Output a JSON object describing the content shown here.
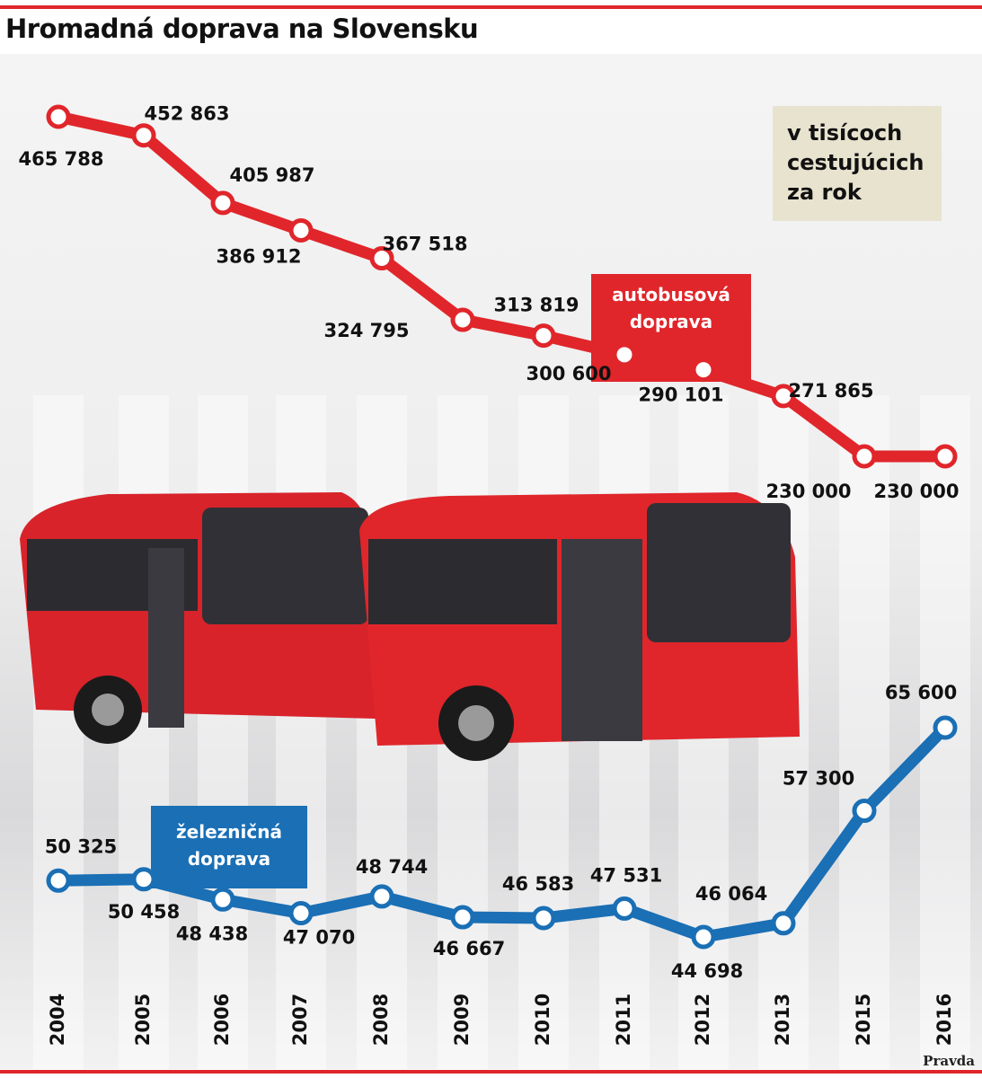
{
  "chart_data": {
    "type": "line",
    "title": "Hromadná doprava na Slovensku",
    "note": "v tisícoch cestujúcich za rok",
    "source": "Pravda",
    "categories": [
      "2004",
      "2005",
      "2006",
      "2007",
      "2008",
      "2009",
      "2010",
      "2011",
      "2012",
      "2013",
      "2015",
      "2016"
    ],
    "series": [
      {
        "name": "autobusová doprava",
        "color": "#e0262b",
        "values": [
          465788,
          452863,
          405987,
          386912,
          367518,
          324795,
          313819,
          300600,
          290101,
          271865,
          230000,
          230000
        ],
        "value_labels": [
          "465 788",
          "452 863",
          "405 987",
          "386 912",
          "367 518",
          "324 795",
          "313 819",
          "300 600",
          "290 101",
          "271 865",
          "230 000",
          "230 000"
        ]
      },
      {
        "name": "železničná doprava",
        "color": "#1a6fb5",
        "values": [
          50325,
          50458,
          48438,
          47070,
          48744,
          46667,
          46583,
          47531,
          44698,
          46064,
          57300,
          65600
        ],
        "value_labels": [
          "50 325",
          "50 458",
          "48 438",
          "47 070",
          "48 744",
          "46 667",
          "46 583",
          "47 531",
          "44 698",
          "46 064",
          "57 300",
          "65 600"
        ]
      }
    ]
  }
}
